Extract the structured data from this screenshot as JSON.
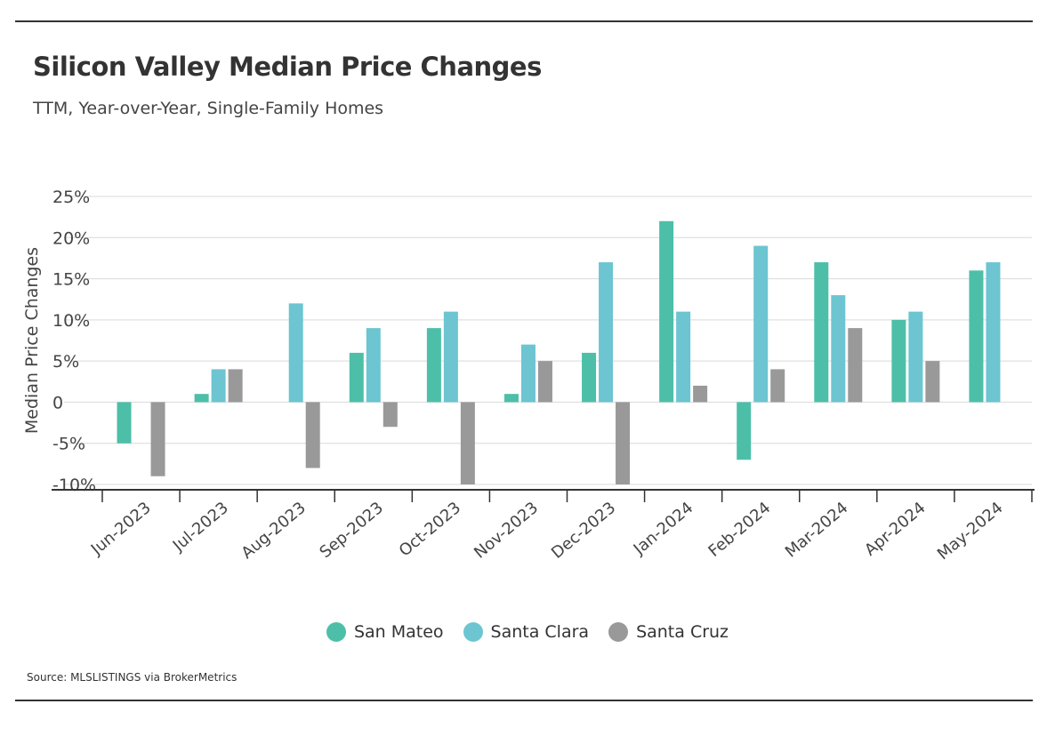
{
  "header": {
    "title": "Silicon Valley Median Price Changes",
    "subtitle": "TTM, Year-over-Year, Single-Family Homes"
  },
  "footer": {
    "source": "Source:  MLSLISTINGS via BrokerMetrics"
  },
  "colors": {
    "San Mateo": "#4dbfa8",
    "Santa Clara": "#6cc5d1",
    "Santa Cruz": "#999999"
  },
  "chart_data": {
    "type": "bar",
    "title": "Silicon Valley Median Price Changes",
    "subtitle": "TTM, Year-over-Year, Single-Family Homes",
    "xlabel": "",
    "ylabel": "Median Price Changes",
    "ylim": [
      -10,
      25
    ],
    "yticks": [
      25,
      20,
      15,
      10,
      5,
      0,
      -5,
      -10
    ],
    "ytick_labels": [
      "25%",
      "20%",
      "15%",
      "10%",
      "5%",
      "0",
      "-5%",
      "-10%"
    ],
    "grid": true,
    "legend_position": "bottom-center",
    "categories": [
      "Jun-2023",
      "Jul-2023",
      "Aug-2023",
      "Sep-2023",
      "Oct-2023",
      "Nov-2023",
      "Dec-2023",
      "Jan-2024",
      "Feb-2024",
      "Mar-2024",
      "Apr-2024",
      "May-2024"
    ],
    "series": [
      {
        "name": "San Mateo",
        "values": [
          -5,
          1,
          0,
          6,
          9,
          1,
          6,
          22,
          -7,
          17,
          10,
          16
        ]
      },
      {
        "name": "Santa Clara",
        "values": [
          0,
          4,
          12,
          9,
          11,
          7,
          17,
          11,
          19,
          13,
          11,
          17
        ]
      },
      {
        "name": "Santa Cruz",
        "values": [
          -9,
          4,
          -8,
          -3,
          -10,
          5,
          -10,
          2,
          4,
          9,
          5,
          0
        ]
      }
    ]
  }
}
